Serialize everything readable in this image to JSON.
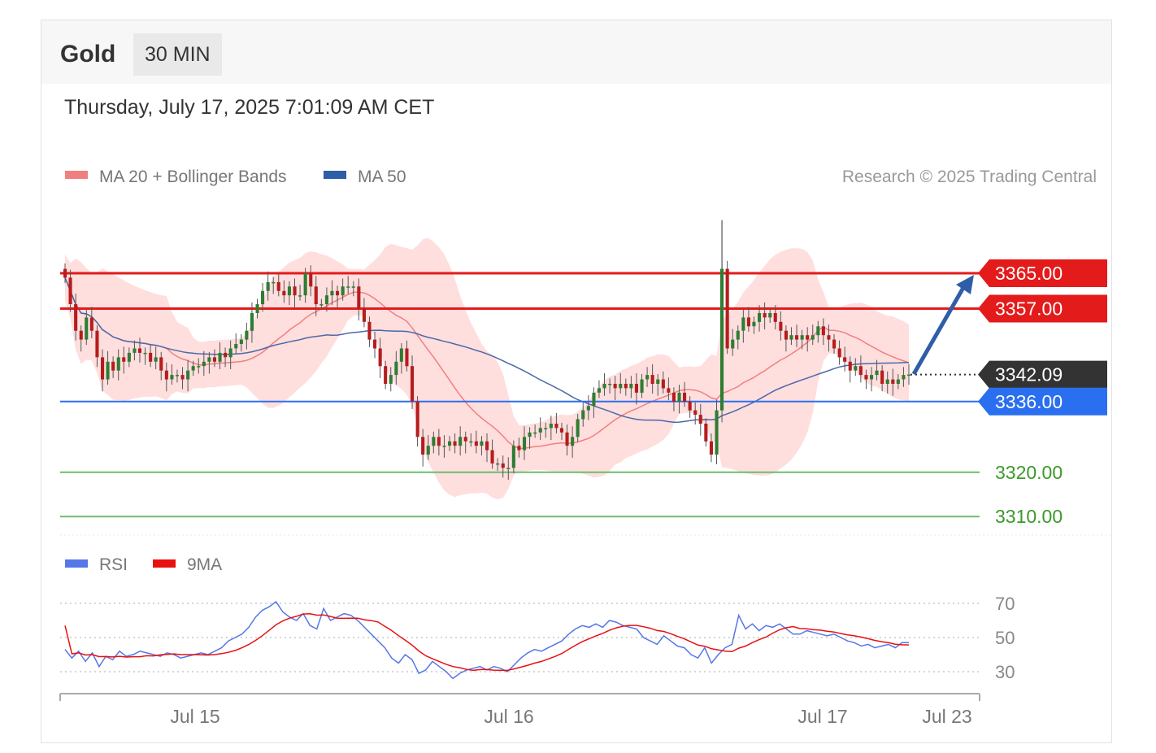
{
  "header": {
    "instrument": "Gold",
    "timeframe": "30 MIN",
    "datetime": "Thursday, July 17, 2025 7:01:09 AM CET"
  },
  "legend": {
    "ma20_bb": "MA 20 + Bollinger Bands",
    "ma50": "MA 50",
    "credit": "Research © 2025 Trading Central",
    "rsi": "RSI",
    "rsi_ma": "9MA"
  },
  "colors": {
    "bb_fill": "#ffdada",
    "ma20": "#f08080",
    "ma50": "#4a68a8",
    "resistance": "#e31b1b",
    "pivot": "#2a6ff0",
    "support": "#6abe6a",
    "support_text": "#3a9a2a",
    "candle_up": "#2e7d32",
    "candle_down": "#b71c1c",
    "rsi": "#5577e8",
    "rsi_ma": "#e81010",
    "current_tag": "#333333",
    "arrow": "#2f5da8"
  },
  "chart_data": {
    "type": "candlestick",
    "x_ticks": [
      "Jul 15",
      "Jul 16",
      "Jul 17",
      "Jul 23"
    ],
    "ylim": [
      3305,
      3375
    ],
    "levels": [
      {
        "label": "3365.00",
        "value": 3365.0,
        "kind": "resistance"
      },
      {
        "label": "3357.00",
        "value": 3357.0,
        "kind": "resistance"
      },
      {
        "label": "3342.09",
        "value": 3342.09,
        "kind": "current"
      },
      {
        "label": "3336.00",
        "value": 3336.0,
        "kind": "pivot"
      },
      {
        "label": "3320.00",
        "value": 3320.0,
        "kind": "support"
      },
      {
        "label": "3310.00",
        "value": 3310.0,
        "kind": "support"
      }
    ],
    "closes": [
      3364,
      3358,
      3352,
      3350,
      3355,
      3352,
      3346,
      3341,
      3345,
      3343,
      3346,
      3345,
      3347,
      3348,
      3347,
      3347,
      3345,
      3346,
      3343,
      3341,
      3342,
      3342,
      3341,
      3343,
      3344,
      3344,
      3345,
      3346,
      3345,
      3347,
      3346,
      3348,
      3349,
      3350,
      3352,
      3356,
      3358,
      3361,
      3363,
      3363,
      3361,
      3360,
      3362,
      3360,
      3360,
      3365,
      3362,
      3358,
      3358,
      3360,
      3361,
      3360,
      3362,
      3362,
      3362,
      3357,
      3354,
      3350,
      3348,
      3344,
      3340,
      3342,
      3345,
      3348,
      3344,
      3336,
      3328,
      3324,
      3326,
      3328,
      3326,
      3326,
      3327,
      3326,
      3328,
      3327,
      3327,
      3326,
      3327,
      3325,
      3322,
      3322,
      3321,
      3321,
      3326,
      3325,
      3328,
      3329,
      3329,
      3330,
      3330,
      3331,
      3330,
      3329,
      3326,
      3328,
      3332,
      3334,
      3335,
      3338,
      3339,
      3340,
      3340,
      3339,
      3340,
      3339,
      3340,
      3338,
      3341,
      3342,
      3340,
      3341,
      3339,
      3338,
      3336,
      3338,
      3336,
      3334,
      3333,
      3331,
      3327,
      3324,
      3334,
      3366,
      3348,
      3350,
      3352,
      3355,
      3353,
      3354,
      3356,
      3355,
      3356,
      3354,
      3352,
      3350,
      3351,
      3350,
      3351,
      3350,
      3351,
      3353,
      3351,
      3350,
      3348,
      3346,
      3345,
      3343,
      3344,
      3342,
      3341,
      3342,
      3343,
      3340,
      3341,
      3340,
      3341,
      3342,
      3342.09
    ],
    "rsi": {
      "ylim": [
        20,
        80
      ],
      "ticks": [
        70,
        50,
        30
      ],
      "values": [
        43,
        38,
        42,
        36,
        41,
        33,
        39,
        37,
        42,
        39,
        40,
        42,
        41,
        40,
        39,
        41,
        40,
        38,
        39,
        40,
        41,
        40,
        42,
        44,
        48,
        50,
        52,
        56,
        62,
        66,
        68,
        71,
        65,
        62,
        60,
        64,
        57,
        55,
        67,
        60,
        62,
        64,
        63,
        60,
        56,
        52,
        48,
        44,
        38,
        35,
        40,
        37,
        29,
        31,
        36,
        33,
        30,
        26,
        29,
        31,
        32,
        33,
        31,
        33,
        32,
        30,
        34,
        38,
        41,
        43,
        42,
        44,
        46,
        48,
        52,
        55,
        57,
        56,
        58,
        56,
        60,
        59,
        57,
        56,
        55,
        50,
        48,
        46,
        51,
        48,
        45,
        44,
        40,
        38,
        44,
        35,
        40,
        44,
        46,
        63,
        55,
        58,
        54,
        57,
        56,
        58,
        55,
        52,
        52,
        54,
        53,
        52,
        51,
        52,
        50,
        48,
        47,
        45,
        46,
        44,
        45,
        46,
        44,
        47,
        47
      ]
    },
    "rsi_ma_start": 57,
    "rsi_ma_end": 47
  }
}
